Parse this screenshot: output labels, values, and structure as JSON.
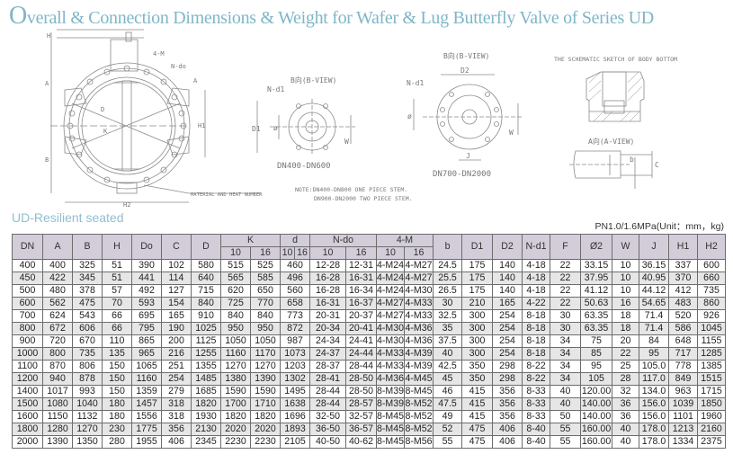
{
  "title": {
    "first_letter": "O",
    "rest": "verall & Connection Dimensions & Weight for Wafer & Lug Butterfly Valve of Series UD"
  },
  "subtitle": "UD-Resilient seated",
  "unit_note": "PN1.0/1.6MPa(Unit：mm，kg)",
  "drawings": {
    "main_view": {
      "labels": {
        "H": "H",
        "A": "A",
        "B": "B",
        "D": "D",
        "K": "K",
        "H1": "H1",
        "H2": "H2",
        "four_m": "4-M",
        "n_do": "N-do",
        "a_arrow": "A",
        "material": "MATERIAL AND HEAT NUMBER"
      }
    },
    "b_view_small": {
      "title": "B向(B-VIEW)",
      "n_d1": "N-d1",
      "D1": "D1",
      "phi": "ø",
      "W": "W",
      "range": "DN400-DN600"
    },
    "b_view_large": {
      "title": "B向(B-VIEW)",
      "n_d1": "N-d1",
      "D2": "D2",
      "phi": "ø",
      "W": "W",
      "J": "J",
      "range": "DN700-DN2000"
    },
    "note_line1": "NOTE:DN400-DN800  ONE  PIECE  STEM.",
    "note_line2": "DN900-DN2000  TWO  PIECE  STEM.",
    "bottom_sketch_title": "THE SCHEMATIC SKETCH OF BODY BOTTOM",
    "a_view": {
      "title": "A向(A-VIEW)",
      "b": "b",
      "C": "C"
    }
  },
  "table": {
    "headers_top": [
      "DN",
      "A",
      "B",
      "H",
      "Do",
      "C",
      "D",
      "K",
      "d",
      "N-do",
      "4-M",
      "b",
      "D1",
      "D2",
      "N-d1",
      "F",
      "Ø2",
      "W",
      "J",
      "H1",
      "H2"
    ],
    "headers_sub": [
      "10",
      "16",
      "10",
      "16",
      "10",
      "16",
      "10",
      "16"
    ],
    "rows": [
      [
        "400",
        "400",
        "325",
        "51",
        "390",
        "102",
        "580",
        "515",
        "525",
        "460",
        "12-28",
        "12-31",
        "4-M24",
        "4-M27",
        "24.5",
        "175",
        "140",
        "4-18",
        "22",
        "33.15",
        "10",
        "36.15",
        "337",
        "600"
      ],
      [
        "450",
        "422",
        "345",
        "51",
        "441",
        "114",
        "640",
        "565",
        "585",
        "496",
        "16-28",
        "16-31",
        "4-M24",
        "4-M27",
        "25.5",
        "175",
        "140",
        "4-18",
        "22",
        "37.95",
        "10",
        "40.95",
        "370",
        "660"
      ],
      [
        "500",
        "480",
        "378",
        "57",
        "492",
        "127",
        "715",
        "620",
        "650",
        "560",
        "16-28",
        "16-34",
        "4-M24",
        "4-M30",
        "26.5",
        "175",
        "140",
        "4-18",
        "22",
        "41.12",
        "10",
        "44.12",
        "412",
        "735"
      ],
      [
        "600",
        "562",
        "475",
        "70",
        "593",
        "154",
        "840",
        "725",
        "770",
        "658",
        "16-31",
        "16-37",
        "4-M27",
        "4-M33",
        "30",
        "210",
        "165",
        "4-22",
        "22",
        "50.63",
        "16",
        "54.65",
        "483",
        "860"
      ],
      [
        "700",
        "624",
        "543",
        "66",
        "695",
        "165",
        "910",
        "840",
        "840",
        "773",
        "20-31",
        "20-37",
        "4-M27",
        "4-M33",
        "32.5",
        "300",
        "254",
        "8-18",
        "30",
        "63.35",
        "18",
        "71.4",
        "520",
        "926"
      ],
      [
        "800",
        "672",
        "606",
        "66",
        "795",
        "190",
        "1025",
        "950",
        "950",
        "872",
        "20-34",
        "20-41",
        "4-M30",
        "4-M36",
        "35",
        "300",
        "254",
        "8-18",
        "30",
        "63.35",
        "18",
        "71.4",
        "586",
        "1045"
      ],
      [
        "900",
        "720",
        "670",
        "110",
        "865",
        "200",
        "1125",
        "1050",
        "1050",
        "987",
        "24-34",
        "24-41",
        "4-M30",
        "4-M36",
        "37.5",
        "300",
        "254",
        "8-18",
        "34",
        "75",
        "20",
        "84",
        "648",
        "1155"
      ],
      [
        "1000",
        "800",
        "735",
        "135",
        "965",
        "216",
        "1255",
        "1160",
        "1170",
        "1073",
        "24-37",
        "24-44",
        "4-M33",
        "4-M39",
        "40",
        "300",
        "254",
        "8-18",
        "34",
        "85",
        "22",
        "95",
        "717",
        "1285"
      ],
      [
        "1100",
        "870",
        "806",
        "150",
        "1065",
        "251",
        "1355",
        "1270",
        "1270",
        "1203",
        "28-37",
        "28-44",
        "4-M33",
        "4-M39",
        "42.5",
        "350",
        "298",
        "8-22",
        "34",
        "95",
        "25",
        "105.0",
        "778",
        "1385"
      ],
      [
        "1200",
        "940",
        "878",
        "150",
        "1160",
        "254",
        "1485",
        "1380",
        "1390",
        "1302",
        "28-41",
        "28-50",
        "4-M36",
        "4-M45",
        "45",
        "350",
        "298",
        "8-22",
        "34",
        "105",
        "28",
        "117.0",
        "849",
        "1515"
      ],
      [
        "1400",
        "1017",
        "993",
        "150",
        "1359",
        "279",
        "1685",
        "1590",
        "1590",
        "1495",
        "28-44",
        "28-50",
        "8-M39",
        "8-M45",
        "46",
        "415",
        "356",
        "8-33",
        "40",
        "120.00",
        "32",
        "134.0",
        "963",
        "1715"
      ],
      [
        "1500",
        "1080",
        "1040",
        "180",
        "1457",
        "318",
        "1820",
        "1700",
        "1710",
        "1638",
        "28-44",
        "28-57",
        "8-M39",
        "8-M52",
        "47.5",
        "415",
        "356",
        "8-33",
        "40",
        "140.00",
        "36",
        "156.0",
        "1039",
        "1850"
      ],
      [
        "1600",
        "1150",
        "1132",
        "180",
        "1556",
        "318",
        "1930",
        "1820",
        "1820",
        "1696",
        "32-50",
        "32-57",
        "8-M45",
        "8-M52",
        "49",
        "415",
        "356",
        "8-33",
        "50",
        "140.00",
        "36",
        "156.0",
        "1101",
        "1960"
      ],
      [
        "1800",
        "1280",
        "1270",
        "230",
        "1775",
        "356",
        "2130",
        "2020",
        "2020",
        "1893",
        "36-50",
        "36-57",
        "8-M45",
        "8-M52",
        "52",
        "475",
        "406",
        "8-40",
        "55",
        "160.00",
        "40",
        "178.0",
        "1213",
        "2160"
      ],
      [
        "2000",
        "1390",
        "1350",
        "280",
        "1955",
        "406",
        "2345",
        "2230",
        "2230",
        "2105",
        "40-50",
        "40-62",
        "8-M45",
        "8-M56",
        "55",
        "475",
        "406",
        "8-40",
        "55",
        "160.00",
        "40",
        "178.0",
        "1334",
        "2375"
      ]
    ]
  },
  "colors": {
    "title": "#7fb6c8",
    "subtitle": "#8fbfd0",
    "header_bg": "#d3cdd9",
    "row_alt": "#e6e6e6",
    "grid": "#6c6c6c",
    "drawing_line": "#8a8a8a"
  }
}
